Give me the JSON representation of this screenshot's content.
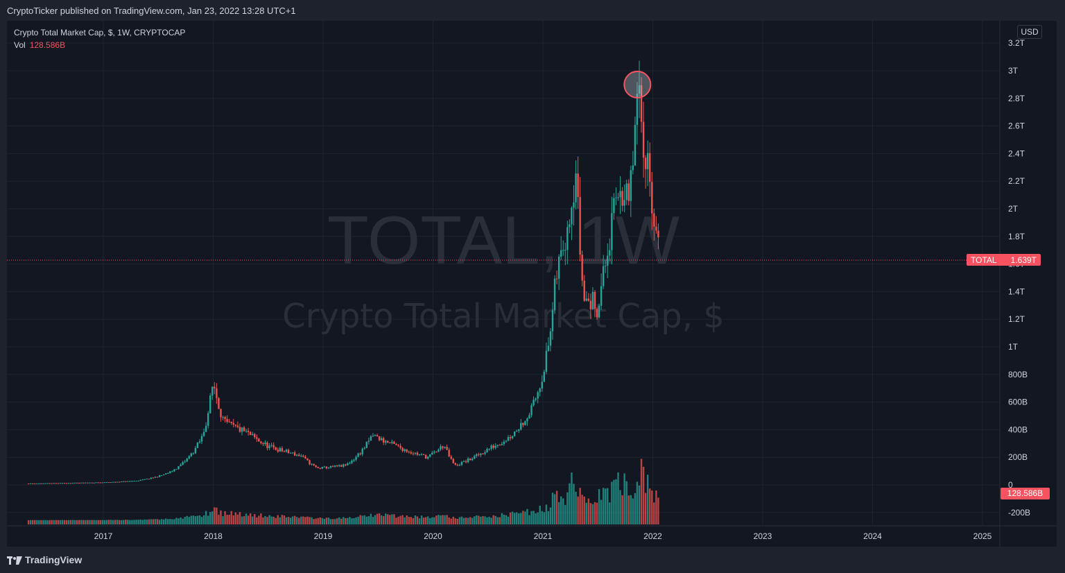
{
  "header": {
    "published": "CryptoTicker published on TradingView.com, Jan 23, 2022 13:28 UTC+1"
  },
  "legend": {
    "symbol_line": "Crypto Total Market Cap, $, 1W, CRYPTOCAP",
    "vol_label": "Vol",
    "vol_value": "128.586B"
  },
  "currency_badge": "USD",
  "watermark": {
    "line1": "TOTAL, 1W",
    "line2": "Crypto Total Market Cap, $"
  },
  "last_price_tag": {
    "symbol": "TOTAL",
    "value": "1.639T"
  },
  "volume_tag": "128.586B",
  "footer": {
    "brand": "TradingView"
  },
  "colors": {
    "up": "#26a69a",
    "down": "#ef5350",
    "background": "#131722",
    "grid": "#1f2330",
    "highlight": "#f7525f"
  },
  "chart_data": {
    "type": "candlestick",
    "title": "Crypto Total Market Cap, $",
    "interval": "1W",
    "exchange": "CRYPTOCAP",
    "y_ticks": [
      "3.2T",
      "3T",
      "2.8T",
      "2.6T",
      "2.4T",
      "2.2T",
      "2T",
      "1.8T",
      "1.6T",
      "1.4T",
      "1.2T",
      "1T",
      "800B",
      "600B",
      "400B",
      "200B",
      "0",
      "-200B"
    ],
    "y_tick_values": [
      3.2,
      3.0,
      2.8,
      2.6,
      2.4,
      2.2,
      2.0,
      1.8,
      1.6,
      1.4,
      1.2,
      1.0,
      0.8,
      0.6,
      0.4,
      0.2,
      0,
      -0.2
    ],
    "y_unit": "trillion USD",
    "x_ticks": [
      "2017",
      "2018",
      "2019",
      "2020",
      "2021",
      "2022",
      "2023",
      "2024",
      "2025"
    ],
    "x_tick_years": [
      2017,
      2018,
      2019,
      2020,
      2021,
      2022,
      2023,
      2024,
      2025
    ],
    "last_price": 1.639,
    "last_volume": "128.586B",
    "grid": true,
    "key_points": [
      {
        "year": 2016.3,
        "value": 0.01
      },
      {
        "year": 2017.0,
        "value": 0.018
      },
      {
        "year": 2017.3,
        "value": 0.03
      },
      {
        "year": 2017.6,
        "value": 0.09
      },
      {
        "year": 2017.9,
        "value": 0.35
      },
      {
        "year": 2018.0,
        "value": 0.75
      },
      {
        "year": 2018.1,
        "value": 0.45
      },
      {
        "year": 2018.3,
        "value": 0.38
      },
      {
        "year": 2018.5,
        "value": 0.28
      },
      {
        "year": 2018.8,
        "value": 0.21
      },
      {
        "year": 2018.95,
        "value": 0.12
      },
      {
        "year": 2019.2,
        "value": 0.14
      },
      {
        "year": 2019.45,
        "value": 0.36
      },
      {
        "year": 2019.7,
        "value": 0.27
      },
      {
        "year": 2019.95,
        "value": 0.2
      },
      {
        "year": 2020.1,
        "value": 0.29
      },
      {
        "year": 2020.2,
        "value": 0.14
      },
      {
        "year": 2020.5,
        "value": 0.26
      },
      {
        "year": 2020.7,
        "value": 0.35
      },
      {
        "year": 2020.9,
        "value": 0.55
      },
      {
        "year": 2021.05,
        "value": 1.0
      },
      {
        "year": 2021.12,
        "value": 1.5
      },
      {
        "year": 2021.3,
        "value": 2.3
      },
      {
        "year": 2021.37,
        "value": 1.35
      },
      {
        "year": 2021.5,
        "value": 1.3
      },
      {
        "year": 2021.6,
        "value": 1.75
      },
      {
        "year": 2021.7,
        "value": 2.2
      },
      {
        "year": 2021.78,
        "value": 2.0
      },
      {
        "year": 2021.86,
        "value": 2.8
      },
      {
        "year": 2021.92,
        "value": 2.5
      },
      {
        "year": 2021.97,
        "value": 2.25
      },
      {
        "year": 2022.06,
        "value": 1.64
      }
    ],
    "annotation": {
      "type": "circle",
      "year": 2021.86,
      "value": 2.9
    }
  }
}
